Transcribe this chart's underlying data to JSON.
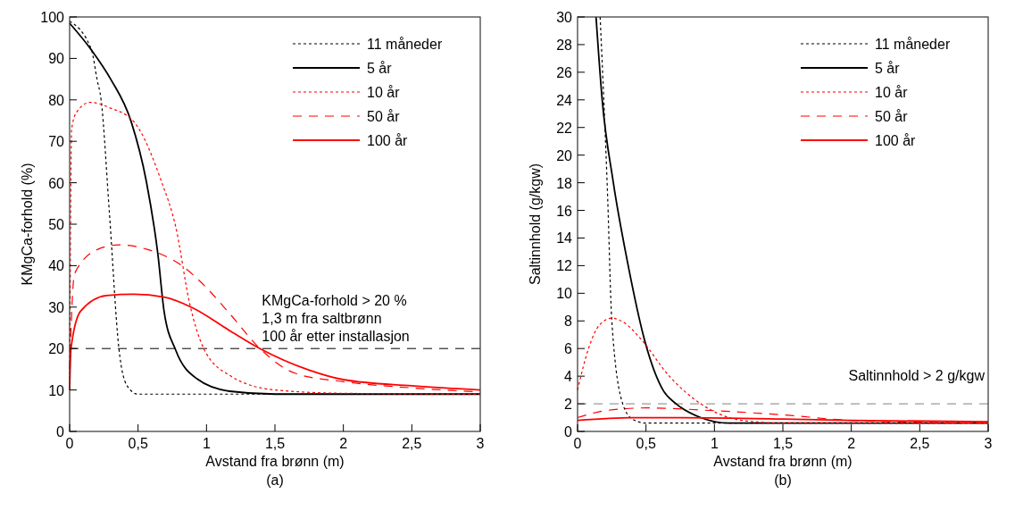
{
  "chart_data": [
    {
      "type": "line",
      "xlabel": "Avstand fra brønn (m)",
      "ylabel": "KMgCa-forhold (%)",
      "xlim": [
        0,
        3
      ],
      "ylim": [
        0,
        100
      ],
      "xticks": [
        0,
        {
          "value": 0.5,
          "label": "0,5"
        },
        1,
        {
          "value": 1.5,
          "label": "1,5"
        },
        2,
        {
          "value": 2.5,
          "label": "2,5"
        },
        3
      ],
      "yticks": [
        0,
        10,
        20,
        30,
        40,
        50,
        60,
        70,
        80,
        90,
        100
      ],
      "legend": "top right",
      "grid": false,
      "ref_lines": [
        {
          "axis": "y",
          "value": 20,
          "color": "#000000",
          "line_style": "dashed"
        }
      ],
      "annotations": [
        {
          "text": "KMgCa-forhold > 20 %\n1,3 m fra saltbrønn\n100 år etter installasjon",
          "x": 1.3,
          "y": 20
        },
        "(a)"
      ],
      "series": [
        {
          "name": "11 måneder",
          "color": "#000000",
          "line_style": "dotted",
          "x": [
            0,
            0.16,
            0.2,
            0.23,
            0.29,
            0.36,
            0.42,
            0.5,
            1,
            2,
            3
          ],
          "values": [
            99,
            92,
            85,
            80,
            53,
            20,
            11,
            9,
            9,
            9,
            9
          ]
        },
        {
          "name": "5 år",
          "color": "#000000",
          "line_style": "solid",
          "x": [
            0,
            0.16,
            0.3,
            0.45,
            0.56,
            0.645,
            0.69,
            0.775,
            0.93,
            1.17,
            1.5,
            3
          ],
          "values": [
            98.5,
            92,
            85,
            74.7,
            60.4,
            42.7,
            29,
            19.6,
            12.7,
            9.7,
            9,
            9
          ]
        },
        {
          "name": "10 år",
          "color": "#ff0000",
          "line_style": "dotted",
          "x": [
            0,
            0.015,
            0.05,
            0.15,
            0.3,
            0.47,
            0.67,
            0.775,
            0.88,
            0.98,
            1.17,
            1.5,
            2,
            3
          ],
          "values": [
            10,
            73,
            77,
            79.4,
            78,
            74.7,
            60.4,
            49.4,
            30.4,
            20,
            13.5,
            10,
            9.2,
            9
          ]
        },
        {
          "name": "50 år",
          "color": "#ff0000",
          "line_style": "dashed",
          "x": [
            0,
            0.035,
            0.21,
            0.36,
            0.56,
            0.82,
            0.99,
            1.17,
            1.39,
            1.65,
            2,
            2.5,
            3
          ],
          "values": [
            15,
            38,
            44,
            45,
            44,
            40,
            35,
            28.4,
            20,
            14,
            12,
            10.5,
            9.5
          ]
        },
        {
          "name": "100 år",
          "color": "#ff0000",
          "line_style": "solid",
          "x": [
            0,
            0.01,
            0.08,
            0.27,
            0.47,
            0.69,
            0.9,
            1.17,
            1.39,
            1.75,
            2,
            2.5,
            3
          ],
          "values": [
            10,
            20,
            29,
            32.8,
            33.1,
            32.4,
            29.8,
            24.3,
            20,
            14.8,
            12.5,
            11,
            10
          ]
        }
      ]
    },
    {
      "type": "line",
      "xlabel": "Avstand fra brønn (m)",
      "ylabel": "Saltinnhold (g/kgw)",
      "xlim": [
        0,
        3
      ],
      "ylim": [
        0,
        30
      ],
      "xticks": [
        0,
        {
          "value": 0.5,
          "label": "0,5"
        },
        1,
        {
          "value": 1.5,
          "label": "1,5"
        },
        2,
        {
          "value": 2.5,
          "label": "2,5"
        },
        3
      ],
      "yticks": [
        0,
        2,
        4,
        6,
        8,
        10,
        12,
        14,
        16,
        18,
        20,
        22,
        24,
        26,
        28,
        30
      ],
      "legend": "top right",
      "grid": false,
      "ref_lines": [
        {
          "axis": "y",
          "value": 2,
          "color": "#808080",
          "line_style": "dashed"
        }
      ],
      "annotations": [
        {
          "text": "Saltinnhold > 2 g/kgw",
          "x": 3,
          "y": 2
        },
        "(b)"
      ],
      "series": [
        {
          "name": "11 måneder",
          "color": "#000000",
          "line_style": "dotted",
          "x": [
            0.165,
            0.22,
            0.25,
            0.33,
            0.4,
            0.5,
            1,
            2,
            3
          ],
          "values": [
            30,
            16.9,
            8.05,
            2,
            0.9,
            0.6,
            0.6,
            0.6,
            0.6
          ]
        },
        {
          "name": "5 år",
          "color": "#000000",
          "line_style": "solid",
          "x": [
            0.135,
            0.18,
            0.26,
            0.37,
            0.49,
            0.63,
            0.72,
            0.9,
            1.1,
            2,
            3
          ],
          "values": [
            30,
            24,
            18.1,
            12,
            6.6,
            2.9,
            2,
            1,
            0.6,
            0.6,
            0.6
          ]
        },
        {
          "name": "10 år",
          "color": "#ff0000",
          "line_style": "dotted",
          "x": [
            0,
            0.08,
            0.16,
            0.25,
            0.35,
            0.47,
            0.67,
            0.9,
            1.2,
            1.5,
            2,
            3
          ],
          "values": [
            3,
            6,
            7.7,
            8.2,
            7.8,
            6.6,
            4,
            2,
            0.8,
            0.6,
            0.6,
            0.6
          ]
        },
        {
          "name": "50 år",
          "color": "#ff0000",
          "line_style": "dashed",
          "x": [
            0,
            0.2,
            0.5,
            1,
            1.5,
            2,
            3
          ],
          "values": [
            1,
            1.5,
            1.7,
            1.5,
            1.2,
            0.8,
            0.6
          ]
        },
        {
          "name": "100 år",
          "color": "#ff0000",
          "line_style": "solid",
          "x": [
            0,
            0.4,
            0.7,
            1.5,
            2,
            3
          ],
          "values": [
            0.8,
            1,
            1,
            0.9,
            0.8,
            0.7
          ]
        }
      ]
    }
  ]
}
